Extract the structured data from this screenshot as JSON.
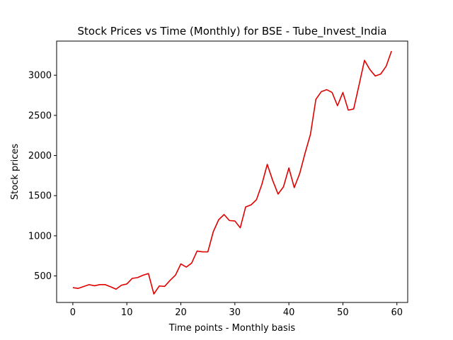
{
  "chart_data": {
    "type": "line",
    "title": "Stock Prices vs Time (Monthly) for BSE - Tube_Invest_India",
    "xlabel": "Time points - Monthly basis",
    "ylabel": "Stock prices",
    "xlim": [
      -3,
      62
    ],
    "ylim": [
      170,
      3425
    ],
    "xticks": [
      0,
      10,
      20,
      30,
      40,
      50,
      60
    ],
    "yticks": [
      500,
      1000,
      1500,
      2000,
      2500,
      3000
    ],
    "grid": false,
    "series": [
      {
        "color": "#e00000",
        "x": [
          0,
          1,
          2,
          3,
          4,
          5,
          6,
          7,
          8,
          9,
          10,
          11,
          12,
          13,
          14,
          15,
          16,
          17,
          18,
          19,
          20,
          21,
          22,
          23,
          24,
          25,
          26,
          27,
          28,
          29,
          30,
          31,
          32,
          33,
          34,
          35,
          36,
          37,
          38,
          39,
          40,
          41,
          42,
          43,
          44,
          45,
          46,
          47,
          48,
          49,
          50,
          51,
          52,
          53,
          54,
          55,
          56,
          57,
          58,
          59
        ],
        "y": [
          355,
          345,
          368,
          392,
          378,
          392,
          392,
          365,
          335,
          385,
          400,
          470,
          480,
          510,
          530,
          275,
          375,
          370,
          445,
          510,
          650,
          610,
          660,
          810,
          800,
          800,
          1050,
          1200,
          1265,
          1190,
          1185,
          1100,
          1360,
          1385,
          1450,
          1640,
          1890,
          1690,
          1520,
          1610,
          1845,
          1600,
          1775,
          2030,
          2265,
          2700,
          2795,
          2820,
          2785,
          2620,
          2785,
          2565,
          2580,
          2880,
          3185,
          3070,
          2990,
          3015,
          3110,
          3300
        ]
      }
    ]
  }
}
